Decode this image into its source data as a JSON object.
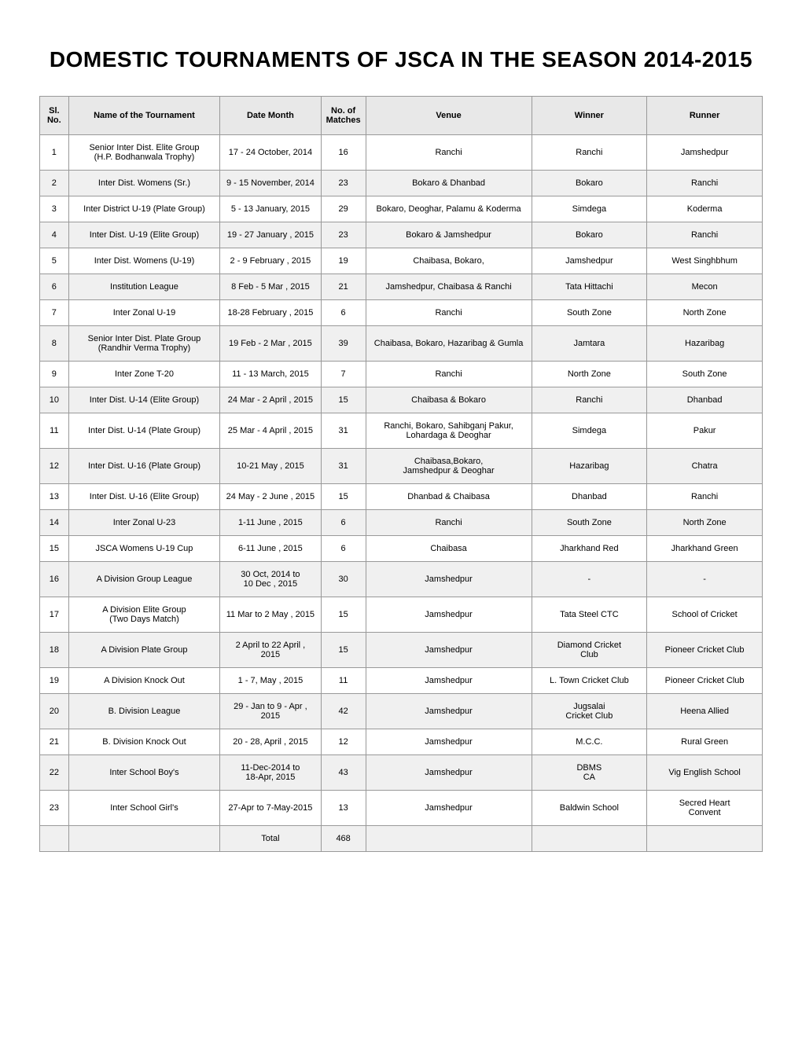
{
  "title": "DOMESTIC TOURNAMENTS OF JSCA IN THE SEASON 2014-2015",
  "headers": {
    "sl": "Sl. No.",
    "name": "Name of the Tournament",
    "date": "Date Month",
    "matches": "No. of Matches",
    "venue": "Venue",
    "winner": "Winner",
    "runner": "Runner"
  },
  "rows": [
    {
      "sl": "1",
      "name": "Senior Inter Dist. Elite Group\n(H.P. Bodhanwala Trophy)",
      "date": "17 - 24 October, 2014",
      "matches": "16",
      "venue": "Ranchi",
      "winner": "Ranchi",
      "runner": "Jamshedpur"
    },
    {
      "sl": "2",
      "name": "Inter Dist. Womens (Sr.)",
      "date": "9 - 15 November, 2014",
      "matches": "23",
      "venue": "Bokaro & Dhanbad",
      "winner": "Bokaro",
      "runner": "Ranchi"
    },
    {
      "sl": "3",
      "name": "Inter District U-19 (Plate Group)",
      "date": "5 - 13  January, 2015",
      "matches": "29",
      "venue": "Bokaro, Deoghar, Palamu & Koderma",
      "winner": "Simdega",
      "runner": "Koderma"
    },
    {
      "sl": "4",
      "name": "Inter Dist. U-19  (Elite Group)",
      "date": "19 - 27 January , 2015",
      "matches": "23",
      "venue": "Bokaro & Jamshedpur",
      "winner": "Bokaro",
      "runner": "Ranchi"
    },
    {
      "sl": "5",
      "name": "Inter Dist. Womens (U-19)",
      "date": "2 - 9 February , 2015",
      "matches": "19",
      "venue": "Chaibasa, Bokaro,",
      "winner": "Jamshedpur",
      "runner": "West Singhbhum"
    },
    {
      "sl": "6",
      "name": "Institution League",
      "date": "8 Feb - 5 Mar , 2015",
      "matches": "21",
      "venue": "Jamshedpur, Chaibasa  & Ranchi",
      "winner": "Tata Hittachi",
      "runner": "Mecon"
    },
    {
      "sl": "7",
      "name": "Inter Zonal U-19",
      "date": "18-28 February , 2015",
      "matches": "6",
      "venue": "Ranchi",
      "winner": "South Zone",
      "runner": "North Zone"
    },
    {
      "sl": "8",
      "name": "Senior Inter Dist. Plate Group\n(Randhir Verma Trophy)",
      "date": "19 Feb - 2 Mar , 2015",
      "matches": "39",
      "venue": "Chaibasa, Bokaro, Hazaribag & Gumla",
      "winner": "Jamtara",
      "runner": "Hazaribag"
    },
    {
      "sl": "9",
      "name": "Inter Zone T-20",
      "date": "11 - 13 March, 2015",
      "matches": "7",
      "venue": "Ranchi",
      "winner": "North Zone",
      "runner": "South Zone"
    },
    {
      "sl": "10",
      "name": "Inter Dist. U-14 (Elite Group)",
      "date": "24 Mar -  2 April , 2015",
      "matches": "15",
      "venue": "Chaibasa & Bokaro",
      "winner": "Ranchi",
      "runner": "Dhanbad"
    },
    {
      "sl": "11",
      "name": "Inter Dist. U-14 (Plate Group)",
      "date": "25 Mar - 4 April , 2015",
      "matches": "31",
      "venue": "Ranchi, Bokaro, Sahibganj Pakur,\nLohardaga & Deoghar",
      "winner": "Simdega",
      "runner": "Pakur"
    },
    {
      "sl": "12",
      "name": "Inter Dist. U-16 (Plate Group)",
      "date": "10-21 May , 2015",
      "matches": "31",
      "venue": "Chaibasa,Bokaro,\nJamshedpur & Deoghar",
      "winner": "Hazaribag",
      "runner": "Chatra"
    },
    {
      "sl": "13",
      "name": "Inter Dist. U-16 (Elite Group)",
      "date": "24 May - 2 June , 2015",
      "matches": "15",
      "venue": "Dhanbad & Chaibasa",
      "winner": "Dhanbad",
      "runner": "Ranchi"
    },
    {
      "sl": "14",
      "name": "Inter Zonal U-23",
      "date": "1-11 June , 2015",
      "matches": "6",
      "venue": "Ranchi",
      "winner": "South Zone",
      "runner": "North Zone"
    },
    {
      "sl": "15",
      "name": "JSCA Womens U-19 Cup",
      "date": "6-11 June , 2015",
      "matches": "6",
      "venue": "Chaibasa",
      "winner": "Jharkhand Red",
      "runner": "Jharkhand Green"
    },
    {
      "sl": "16",
      "name": "A Division Group League",
      "date": "30 Oct, 2014 to\n10 Dec , 2015",
      "matches": "30",
      "venue": "Jamshedpur",
      "winner": "-",
      "runner": "-"
    },
    {
      "sl": "17",
      "name": "A Division Elite Group\n(Two Days Match)",
      "date": "11 Mar to 2 May , 2015",
      "matches": "15",
      "venue": "Jamshedpur",
      "winner": "Tata Steel CTC",
      "runner": "School of Cricket"
    },
    {
      "sl": "18",
      "name": "A Division Plate Group",
      "date": "2 April to 22 April , 2015",
      "matches": "15",
      "venue": "Jamshedpur",
      "winner": "Diamond Cricket\nClub",
      "runner": "Pioneer Cricket Club"
    },
    {
      "sl": "19",
      "name": "A Division Knock Out",
      "date": "1 - 7, May , 2015",
      "matches": "11",
      "venue": "Jamshedpur",
      "winner": "L. Town Cricket Club",
      "runner": "Pioneer Cricket Club"
    },
    {
      "sl": "20",
      "name": "B. Division League",
      "date": "29 - Jan to 9 - Apr , 2015",
      "matches": "42",
      "venue": "Jamshedpur",
      "winner": "Jugsalai\nCricket Club",
      "runner": "Heena Allied"
    },
    {
      "sl": "21",
      "name": "B. Division Knock Out",
      "date": "20 - 28, April , 2015",
      "matches": "12",
      "venue": "Jamshedpur",
      "winner": "M.C.C.",
      "runner": "Rural Green"
    },
    {
      "sl": "22",
      "name": "Inter School Boy's",
      "date": "11-Dec-2014 to\n18-Apr, 2015",
      "matches": "43",
      "venue": "Jamshedpur",
      "winner": "DBMS\nCA",
      "runner": "Vig English School"
    },
    {
      "sl": "23",
      "name": "Inter School Girl's",
      "date": "27-Apr to 7-May-2015",
      "matches": "13",
      "venue": "Jamshedpur",
      "winner": "Baldwin School",
      "runner": "Secred Heart\nConvent"
    }
  ],
  "totalLabel": "Total",
  "totalMatches": "468"
}
